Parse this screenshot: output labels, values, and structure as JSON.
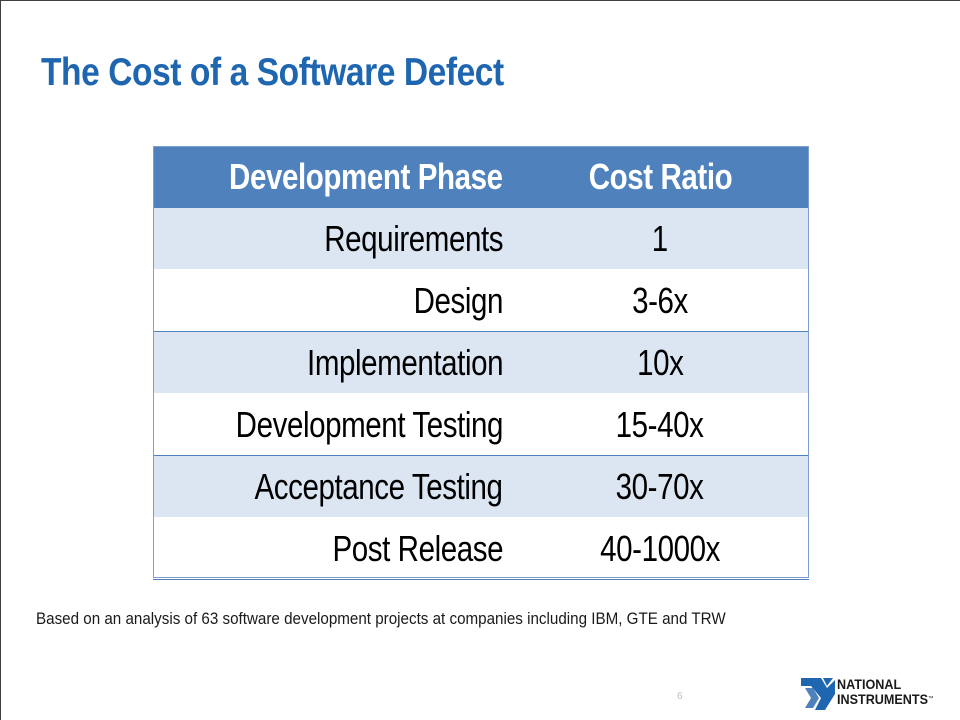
{
  "slide": {
    "title": "The Cost of a Software Defect",
    "footnote": "Based on an analysis of 63 software development projects at companies including IBM, GTE and TRW",
    "page_number": "6"
  },
  "table": {
    "headers": [
      "Development Phase",
      "Cost Ratio"
    ],
    "rows": [
      [
        "Requirements",
        "1"
      ],
      [
        "Design",
        "3-6x"
      ],
      [
        "Implementation",
        "10x"
      ],
      [
        "Development Testing",
        "15-40x"
      ],
      [
        "Acceptance Testing",
        "30-70x"
      ],
      [
        "Post Release",
        "40-1000x"
      ]
    ]
  },
  "logo": {
    "line1": "NATIONAL",
    "line2": "INSTRUMENTS",
    "trademark": "™",
    "brand_color": "#1f66b0",
    "icon": "national-instruments-eagle-logo"
  },
  "colors": {
    "title": "#1f66b0",
    "header_bg": "#4f81bd",
    "row_band": "#dce6f2"
  }
}
